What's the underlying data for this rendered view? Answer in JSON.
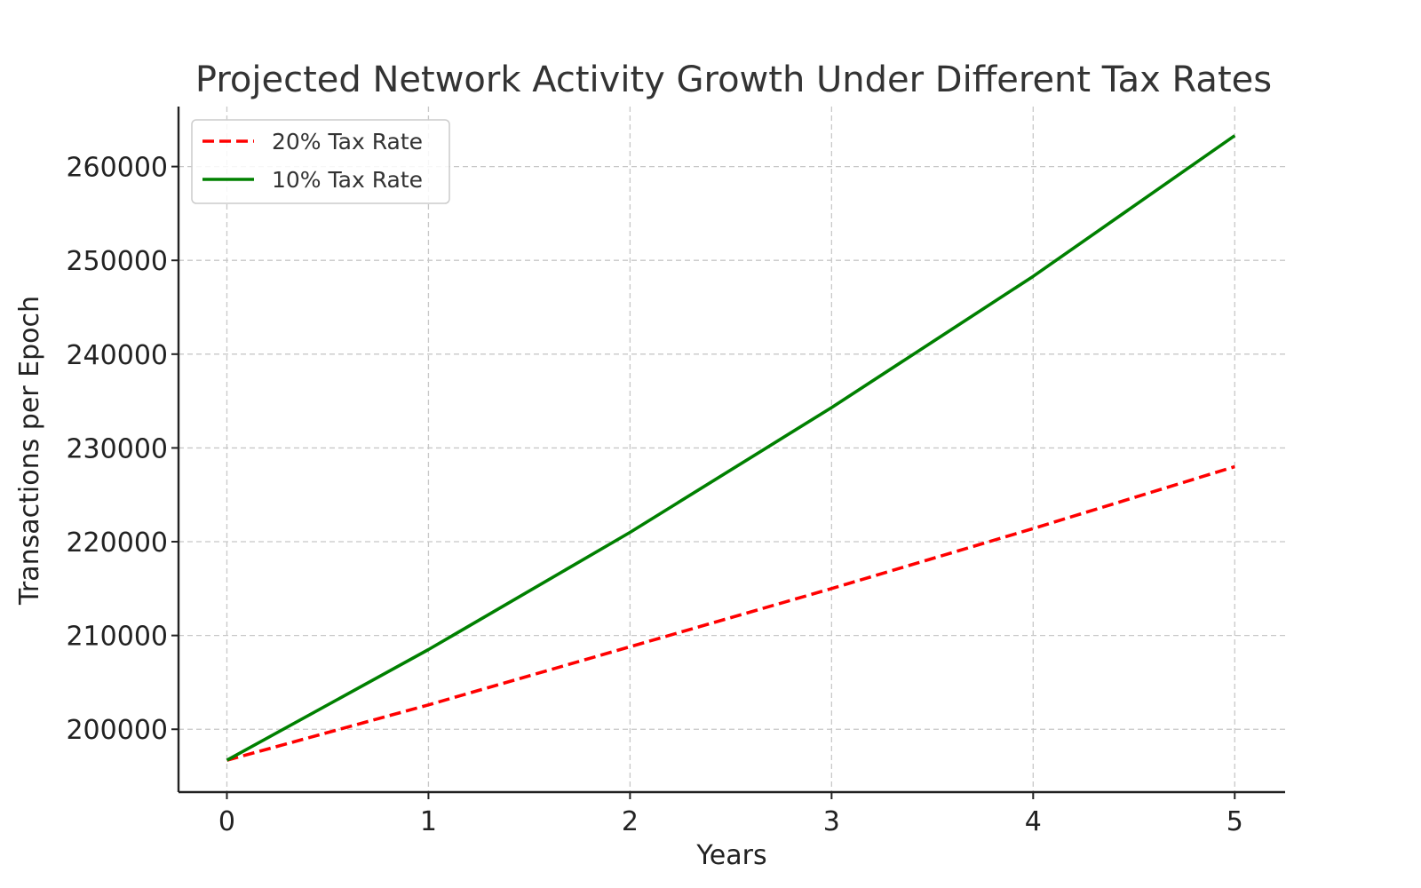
{
  "chart_data": {
    "type": "line",
    "title": "Projected Network Activity Growth Under Different Tax Rates",
    "xlabel": "Years",
    "ylabel": "Transactions per Epoch",
    "x": [
      0,
      1,
      2,
      3,
      4,
      5
    ],
    "xticks": [
      0,
      1,
      2,
      3,
      4,
      5
    ],
    "yticks": [
      200000,
      210000,
      220000,
      230000,
      240000,
      250000,
      260000
    ],
    "xlim": [
      -0.24,
      5.25
    ],
    "ylim": [
      193300,
      266400
    ],
    "grid": true,
    "legend_position": "top-left",
    "series": [
      {
        "name": "20% Tax Rate",
        "color": "#ff0000",
        "style": "dashed",
        "values": [
          196700,
          202600,
          208800,
          215000,
          221400,
          228000
        ]
      },
      {
        "name": "10% Tax Rate",
        "color": "#008000",
        "style": "solid",
        "values": [
          196700,
          208500,
          221000,
          234300,
          248300,
          263300
        ]
      }
    ]
  }
}
